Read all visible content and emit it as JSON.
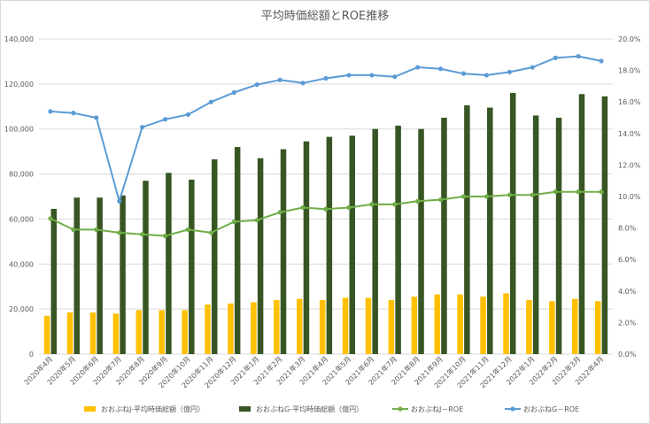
{
  "chart_data": {
    "type": "bar",
    "title": "平均時価総額とROE推移",
    "categories": [
      "2020年4月",
      "2020年5月",
      "2020年6月",
      "2020年7月",
      "2020年8月",
      "2020年9月",
      "2020年10月",
      "2020年11月",
      "2020年12月",
      "2021年1月",
      "2021年2月",
      "2021年3月",
      "2021年4月",
      "2021年5月",
      "2021年6月",
      "2021年7月",
      "2021年8月",
      "2021年9月",
      "2021年10月",
      "2021年11月",
      "2021年12月",
      "2022年1月",
      "2022年2月",
      "2022年3月",
      "2022年4月"
    ],
    "y_left": {
      "min": 0,
      "max": 140000,
      "step": 20000,
      "ticks": [
        "0",
        "20,000",
        "40,000",
        "60,000",
        "80,000",
        "100,000",
        "120,000",
        "140,000"
      ]
    },
    "y_right": {
      "min": 0,
      "max": 20,
      "step": 2,
      "ticks": [
        "0.0%",
        "2.0%",
        "4.0%",
        "6.0%",
        "8.0%",
        "10.0%",
        "12.0%",
        "14.0%",
        "16.0%",
        "18.0%",
        "20.0%"
      ]
    },
    "grid": true,
    "legend_position": "bottom",
    "series": [
      {
        "name": "おおぶねJ-平均時価総額（億円）",
        "kind": "bar",
        "axis": "left",
        "color": "#FFC000",
        "values": [
          17000,
          18500,
          18500,
          18000,
          19500,
          19500,
          19500,
          22000,
          22500,
          23000,
          24000,
          24500,
          24000,
          25000,
          25000,
          24000,
          25500,
          26500,
          26500,
          25500,
          27000,
          24000,
          23500,
          24500,
          23500
        ]
      },
      {
        "name": "おおぶねG-平均時価総額（億円）",
        "kind": "bar",
        "axis": "left",
        "color": "#375623",
        "values": [
          64500,
          69500,
          69500,
          70500,
          77000,
          80500,
          77500,
          86500,
          92000,
          87000,
          91000,
          94500,
          96500,
          97000,
          100000,
          101500,
          100000,
          105000,
          110500,
          109500,
          116000,
          106000,
          105000,
          115500,
          114500
        ]
      },
      {
        "name": "おおぶねJ－ROE",
        "kind": "line",
        "axis": "right",
        "color": "#70AD47",
        "values": [
          8.6,
          7.9,
          7.9,
          7.7,
          7.6,
          7.5,
          7.9,
          7.7,
          8.4,
          8.5,
          9.0,
          9.3,
          9.2,
          9.3,
          9.5,
          9.5,
          9.7,
          9.8,
          10.0,
          10.0,
          10.1,
          10.1,
          10.3,
          10.3,
          10.3
        ]
      },
      {
        "name": "おおぶねG－ROE",
        "kind": "line",
        "axis": "right",
        "color": "#5B9BD5",
        "values": [
          15.4,
          15.3,
          15.0,
          9.7,
          14.4,
          14.9,
          15.2,
          16.0,
          16.6,
          17.1,
          17.4,
          17.2,
          17.5,
          17.7,
          17.7,
          17.6,
          18.2,
          18.1,
          17.8,
          17.7,
          17.9,
          18.2,
          18.8,
          18.9,
          18.6
        ]
      }
    ]
  }
}
